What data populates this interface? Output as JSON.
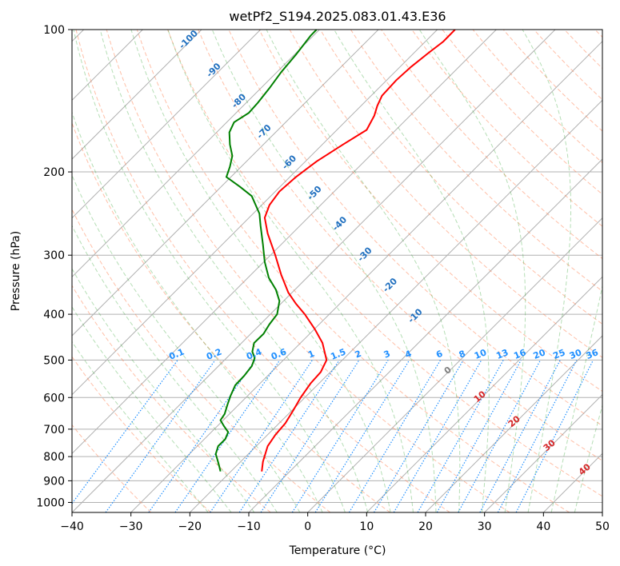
{
  "chart_data": {
    "type": "line",
    "title": "wetPf2_S194.2025.083.01.43.E36",
    "xlabel": "Temperature (°C)",
    "ylabel": "Pressure (hPa)",
    "xlim": [
      -40,
      50
    ],
    "ylim": [
      1050,
      100
    ],
    "y_scale": "log",
    "x_ticks": [
      -40,
      -30,
      -20,
      -10,
      0,
      10,
      20,
      30,
      40,
      50
    ],
    "y_ticks": [
      1000,
      900,
      800,
      700,
      600,
      500,
      400,
      300,
      200,
      100
    ],
    "grid": true,
    "series": [
      {
        "color": "#ff0000",
        "points": [
          [
            -7.8,
            860
          ],
          [
            -7.6,
            820
          ],
          [
            -6.8,
            760
          ],
          [
            -5.5,
            720
          ],
          [
            -3.8,
            680
          ],
          [
            -2.5,
            640
          ],
          [
            -1.2,
            600
          ],
          [
            0.5,
            560
          ],
          [
            2.2,
            530
          ],
          [
            3.2,
            500
          ],
          [
            2.5,
            460
          ],
          [
            1.2,
            430
          ],
          [
            -0.5,
            400
          ],
          [
            -2.0,
            380
          ],
          [
            -3.3,
            360
          ],
          [
            -4.5,
            330
          ],
          [
            -5.5,
            300
          ],
          [
            -6.8,
            270
          ],
          [
            -7.3,
            250
          ],
          [
            -6.5,
            235
          ],
          [
            -4.8,
            220
          ],
          [
            -2.0,
            205
          ],
          [
            1.5,
            190
          ],
          [
            6.0,
            175
          ],
          [
            10.0,
            163
          ],
          [
            11.3,
            152
          ],
          [
            11.8,
            145
          ],
          [
            12.6,
            138
          ],
          [
            15.0,
            128
          ],
          [
            17.5,
            120
          ],
          [
            20.5,
            112
          ],
          [
            23.0,
            106
          ],
          [
            25.0,
            100
          ]
        ]
      },
      {
        "color": "#008000",
        "points": [
          [
            -14.8,
            860
          ],
          [
            -15.1,
            830
          ],
          [
            -15.6,
            790
          ],
          [
            -15.2,
            760
          ],
          [
            -14.0,
            735
          ],
          [
            -13.5,
            710
          ],
          [
            -14.2,
            690
          ],
          [
            -14.8,
            670
          ],
          [
            -14.1,
            650
          ],
          [
            -13.6,
            620
          ],
          [
            -13.1,
            595
          ],
          [
            -12.3,
            565
          ],
          [
            -10.8,
            540
          ],
          [
            -9.5,
            515
          ],
          [
            -9.0,
            495
          ],
          [
            -9.4,
            480
          ],
          [
            -9.1,
            460
          ],
          [
            -7.5,
            440
          ],
          [
            -6.5,
            420
          ],
          [
            -5.2,
            400
          ],
          [
            -4.8,
            375
          ],
          [
            -5.4,
            355
          ],
          [
            -6.6,
            335
          ],
          [
            -7.3,
            310
          ],
          [
            -7.6,
            285
          ],
          [
            -8.0,
            260
          ],
          [
            -8.2,
            245
          ],
          [
            -9.5,
            225
          ],
          [
            -11.5,
            215
          ],
          [
            -13.8,
            205
          ],
          [
            -13.2,
            195
          ],
          [
            -12.8,
            185
          ],
          [
            -13.2,
            175
          ],
          [
            -13.3,
            165
          ],
          [
            -12.5,
            157
          ],
          [
            -10.0,
            150
          ],
          [
            -8.5,
            143
          ],
          [
            -6.5,
            133
          ],
          [
            -4.5,
            123
          ],
          [
            -2.0,
            113
          ],
          [
            0.5,
            103
          ],
          [
            1.5,
            100
          ]
        ]
      }
    ],
    "mixing_ratio_labels": [
      "0.1",
      "0.2",
      "0.4",
      "0.6",
      "1",
      "1.5",
      "2",
      "3",
      "4",
      "6",
      "8",
      "10",
      "13",
      "16",
      "20",
      "25",
      "30",
      "36"
    ],
    "dry_adiabat_labels": [
      "-100",
      "-90",
      "-80",
      "-70",
      "-60",
      "-50",
      "-40",
      "-30",
      "-20",
      "-10"
    ],
    "moist_adiabat_labels": [
      "0",
      "10",
      "20",
      "30",
      "40"
    ],
    "colors": {
      "temperature": "#ff0000",
      "dewpoint": "#008000",
      "mixing_ratio": "#1f8fff",
      "dry_adiabat": "#ff7f50",
      "moist_adiabat": "#2ca02c",
      "isotherm": "#808080",
      "dry_label": "#1f6fbf",
      "moist_label": "#d62728"
    }
  }
}
